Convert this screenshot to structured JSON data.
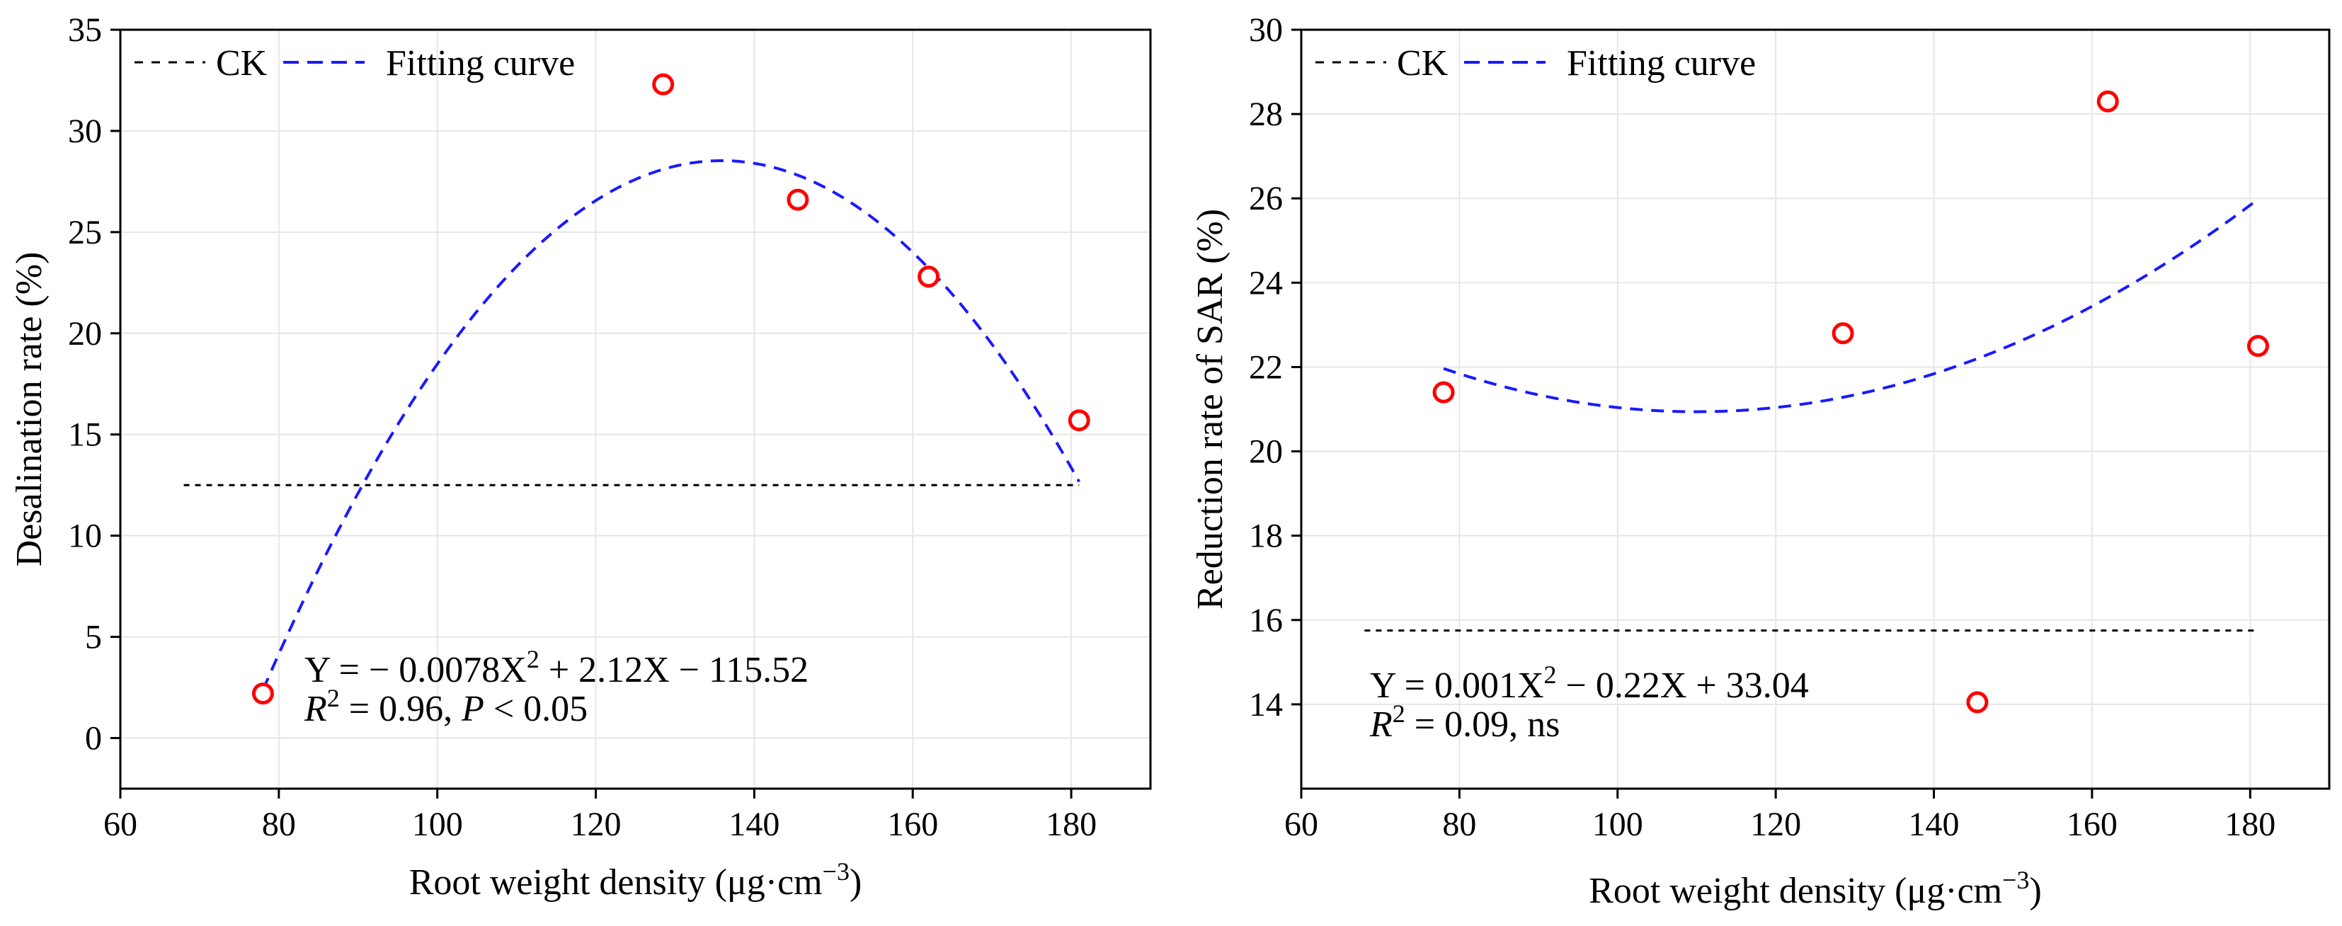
{
  "chart_data": [
    {
      "type": "scatter",
      "xlabel": "Root weight density (μg·cm",
      "xlabel_sup": "−3",
      "xlabel_close": ")",
      "ylabel": "Desalination rate (%)",
      "xlim": [
        60,
        190
      ],
      "ylim": [
        -2.5,
        35
      ],
      "xticks": [
        60,
        80,
        100,
        120,
        140,
        160,
        180
      ],
      "yticks": [
        0,
        5,
        10,
        15,
        20,
        25,
        30,
        35
      ],
      "grid": true,
      "legend_position": "top-left",
      "legend": [
        {
          "label": "CK",
          "color": "#000000",
          "style": "dashed"
        },
        {
          "label": "Fitting curve",
          "color": "#1a1aff",
          "style": "dashed"
        }
      ],
      "points": {
        "x": [
          78,
          128.5,
          145.5,
          162,
          181
        ],
        "y": [
          2.2,
          32.3,
          26.6,
          22.8,
          15.7
        ],
        "color": "#ff0000"
      },
      "ck_value": 12.5,
      "ck_range": [
        68,
        181
      ],
      "fit": {
        "a": -0.0078,
        "b": 2.12,
        "c": -115.52,
        "x_range": [
          78,
          181
        ]
      },
      "equation": {
        "line1_pre": "Y = − 0.0078X",
        "line1_sup": "2",
        "line1_post": " + 2.12X − 115.52",
        "line2_r": "R",
        "line2_sup": "2",
        "line2_mid": " = 0.96, ",
        "line2_p": "P",
        "line2_post": " < 0.05"
      }
    },
    {
      "type": "scatter",
      "xlabel": "Root weight density (μg·cm",
      "xlabel_sup": "−3",
      "xlabel_close": ")",
      "ylabel": "Reduction rate of SAR (%)",
      "xlim": [
        60,
        190
      ],
      "ylim": [
        12,
        30
      ],
      "xticks": [
        60,
        80,
        100,
        120,
        140,
        160,
        180
      ],
      "yticks": [
        14,
        16,
        18,
        20,
        22,
        24,
        26,
        28,
        30
      ],
      "grid": true,
      "legend_position": "top-left",
      "legend": [
        {
          "label": "CK",
          "color": "#000000",
          "style": "dashed"
        },
        {
          "label": "Fitting curve",
          "color": "#1a1aff",
          "style": "dashed"
        }
      ],
      "points": {
        "x": [
          78,
          128.5,
          145.5,
          162,
          181
        ],
        "y": [
          21.4,
          22.8,
          14.05,
          28.3,
          22.5
        ],
        "color": "#ff0000"
      },
      "ck_value": 15.75,
      "ck_range": [
        68,
        181
      ],
      "fit": {
        "a": 0.001,
        "b": -0.22,
        "c": 33.04,
        "x_range": [
          78,
          181
        ]
      },
      "equation": {
        "line1_pre": "Y = 0.001X",
        "line1_sup": "2",
        "line1_post": " − 0.22X + 33.04",
        "line2_r": "R",
        "line2_sup": "2",
        "line2_mid": " = 0.09, ns",
        "line2_p": "",
        "line2_post": ""
      }
    }
  ]
}
